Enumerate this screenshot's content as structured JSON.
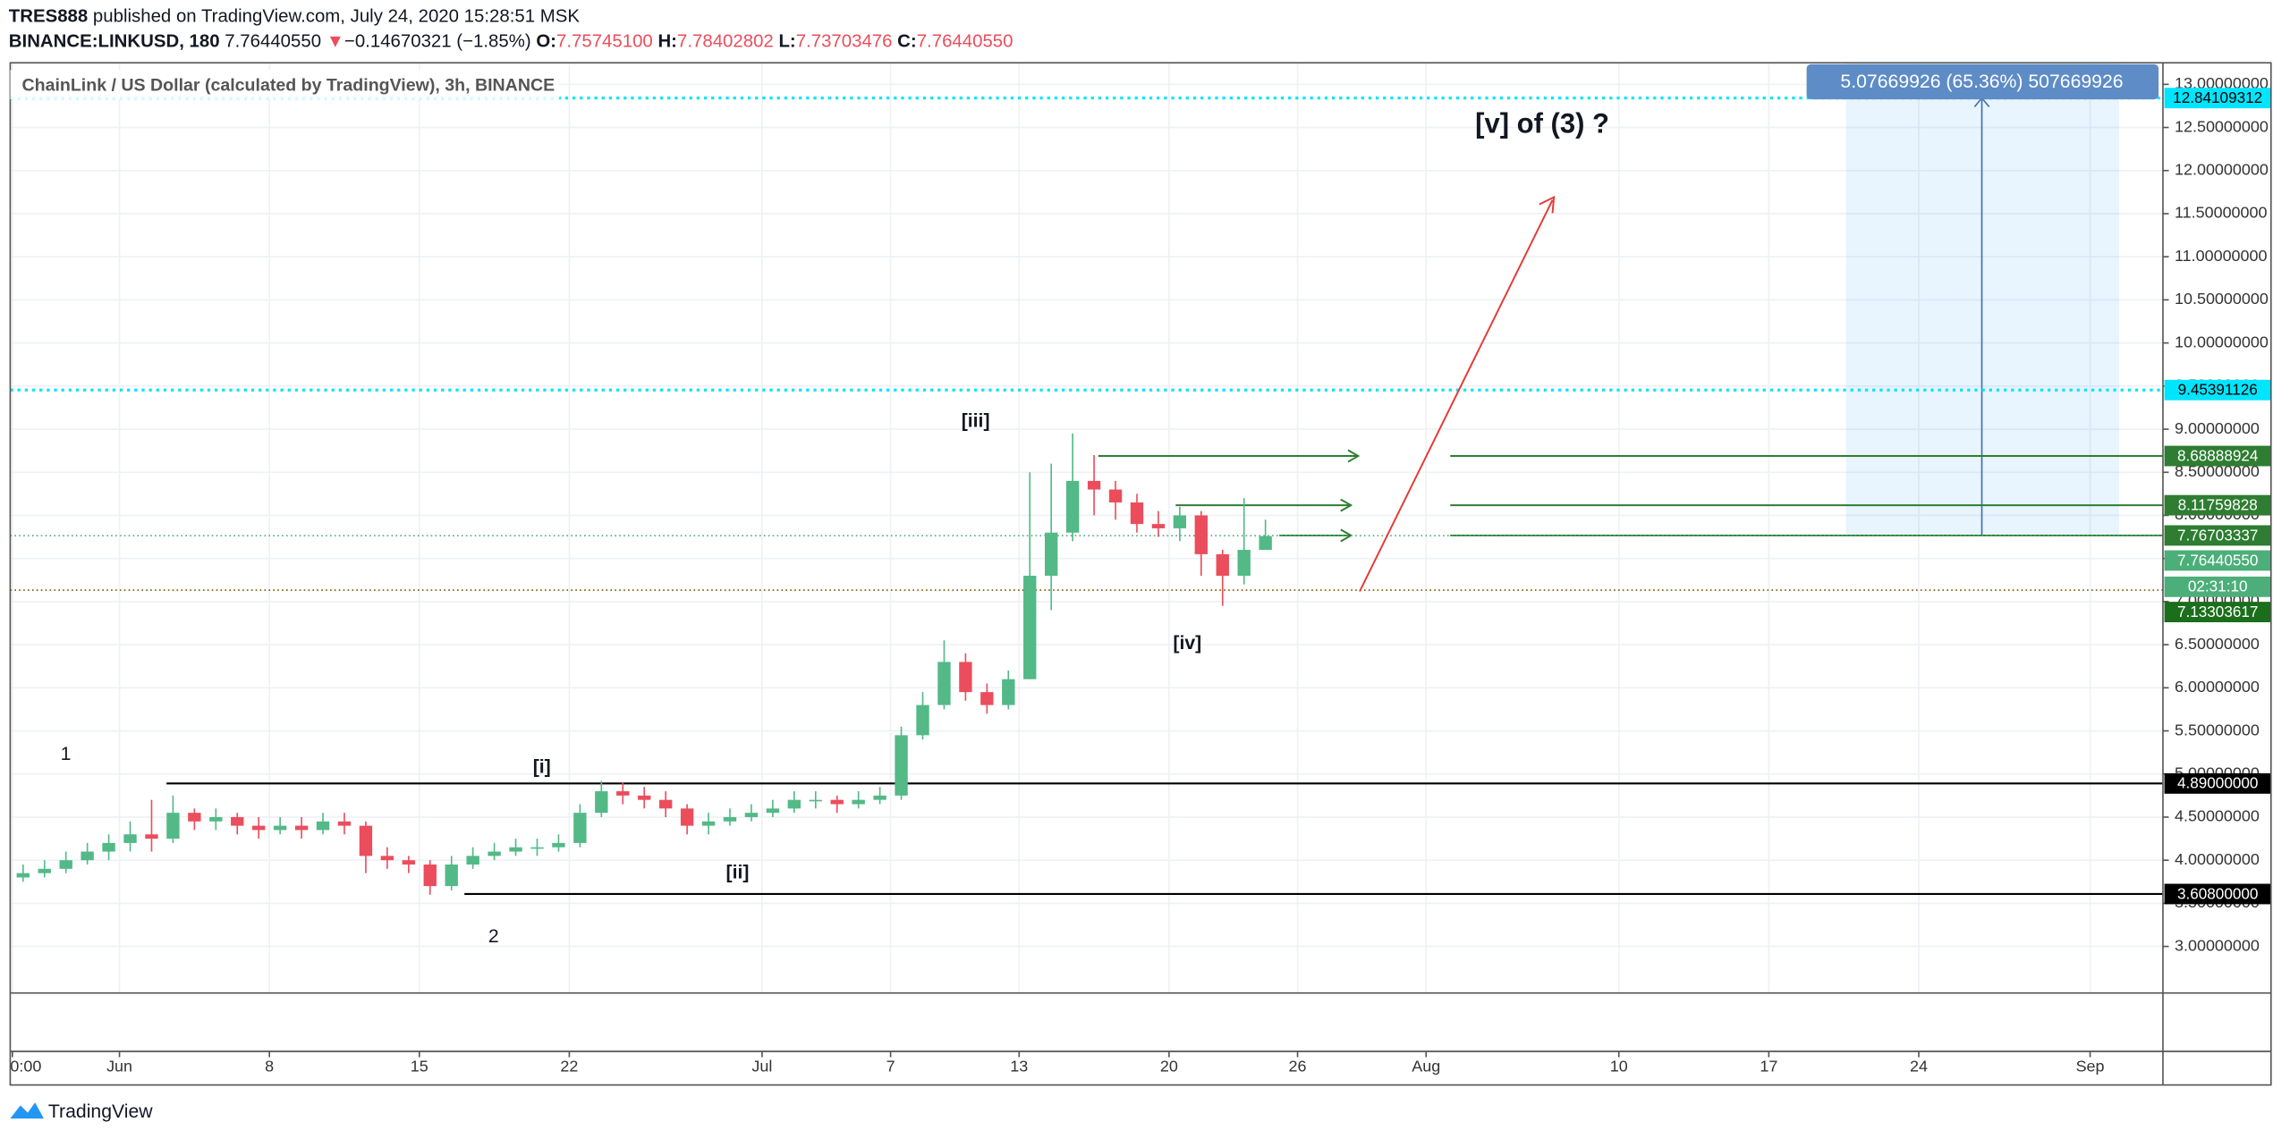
{
  "header": {
    "author": "TRES888",
    "published": "published on TradingView.com, July 24, 2020 15:28:51 MSK",
    "symbol": "BINANCE:LINKUSD, 180",
    "last": "7.76440550",
    "arrow": "▼",
    "change": "−0.14670321 (−1.85%)",
    "o_label": "O:",
    "o": "7.75745100",
    "h_label": "H:",
    "h": "7.78402802",
    "l_label": "L:",
    "l": "7.73703476",
    "c_label": "C:",
    "c": "7.76440550"
  },
  "chart_data": {
    "type": "candlestick",
    "title": "ChainLink / US Dollar (calculated by TradingView), 3h, BINANCE",
    "x": [
      -5,
      -4,
      -3,
      -2,
      -1,
      0,
      1,
      2,
      3,
      4,
      5,
      6,
      7,
      8,
      9,
      10,
      11,
      12,
      13,
      14,
      15,
      16,
      17,
      18,
      19,
      20,
      21,
      22,
      23,
      24,
      25,
      26,
      27,
      28,
      29,
      30,
      31,
      32,
      33,
      34,
      35,
      36,
      37,
      38,
      39,
      40,
      41,
      42,
      43,
      44,
      45,
      46,
      47,
      48,
      49,
      50,
      51,
      52,
      53
    ],
    "open": [
      3.8,
      3.85,
      3.9,
      4.0,
      4.1,
      4.2,
      4.3,
      4.25,
      4.55,
      4.45,
      4.5,
      4.4,
      4.35,
      4.4,
      4.35,
      4.45,
      4.4,
      4.05,
      4.0,
      3.95,
      3.7,
      3.95,
      4.05,
      4.1,
      4.15,
      4.15,
      4.2,
      4.55,
      4.8,
      4.75,
      4.7,
      4.6,
      4.4,
      4.45,
      4.5,
      4.55,
      4.6,
      4.7,
      4.7,
      4.65,
      4.7,
      4.75,
      5.45,
      5.8,
      6.3,
      5.95,
      5.8,
      6.1,
      7.3,
      7.8,
      8.4,
      8.3,
      8.15,
      7.9,
      7.85,
      8.0,
      7.55,
      7.3,
      7.6
    ],
    "high": [
      3.95,
      4.0,
      4.1,
      4.2,
      4.3,
      4.45,
      4.7,
      4.75,
      4.6,
      4.6,
      4.55,
      4.5,
      4.5,
      4.5,
      4.55,
      4.55,
      4.45,
      4.15,
      4.05,
      4.0,
      4.05,
      4.15,
      4.2,
      4.25,
      4.25,
      4.3,
      4.65,
      4.92,
      4.9,
      4.85,
      4.8,
      4.65,
      4.55,
      4.6,
      4.65,
      4.7,
      4.8,
      4.8,
      4.75,
      4.8,
      4.85,
      5.55,
      5.95,
      6.55,
      6.4,
      6.05,
      6.2,
      8.5,
      8.6,
      8.95,
      8.7,
      8.4,
      8.25,
      8.05,
      8.1,
      8.05,
      7.6,
      8.2,
      7.95
    ],
    "low": [
      3.75,
      3.8,
      3.85,
      3.95,
      4.0,
      4.1,
      4.1,
      4.2,
      4.35,
      4.35,
      4.3,
      4.25,
      4.3,
      4.25,
      4.3,
      4.3,
      3.85,
      3.9,
      3.85,
      3.6,
      3.65,
      3.9,
      4.0,
      4.05,
      4.05,
      4.1,
      4.15,
      4.5,
      4.65,
      4.6,
      4.5,
      4.3,
      4.3,
      4.4,
      4.45,
      4.5,
      4.55,
      4.6,
      4.55,
      4.6,
      4.65,
      4.7,
      5.4,
      5.75,
      5.85,
      5.7,
      5.75,
      6.1,
      6.9,
      7.7,
      8.0,
      7.95,
      7.8,
      7.75,
      7.7,
      7.3,
      6.95,
      7.2,
      7.65
    ],
    "close": [
      3.85,
      3.9,
      4.0,
      4.1,
      4.2,
      4.3,
      4.25,
      4.55,
      4.45,
      4.5,
      4.4,
      4.35,
      4.4,
      4.35,
      4.45,
      4.4,
      4.05,
      4.0,
      3.95,
      3.7,
      3.95,
      4.05,
      4.1,
      4.15,
      4.15,
      4.2,
      4.55,
      4.8,
      4.75,
      4.7,
      4.6,
      4.4,
      4.45,
      4.5,
      4.55,
      4.6,
      4.7,
      4.7,
      4.65,
      4.7,
      4.75,
      5.45,
      5.8,
      6.3,
      5.95,
      5.8,
      6.1,
      7.3,
      7.8,
      8.4,
      8.3,
      8.15,
      7.9,
      7.85,
      8.0,
      7.55,
      7.3,
      7.6,
      7.76
    ],
    "up_color": "#53b987",
    "down_color": "#eb4d5c",
    "xlim": [
      -5.1,
      95.4
    ],
    "xticks": [
      {
        "value": -5,
        "label": "0:00"
      },
      {
        "value": 0,
        "label": "Jun"
      },
      {
        "value": 7,
        "label": "8"
      },
      {
        "value": 14,
        "label": "15"
      },
      {
        "value": 21,
        "label": "22"
      },
      {
        "value": 30,
        "label": "Jul"
      },
      {
        "value": 36,
        "label": "7"
      },
      {
        "value": 42,
        "label": "13"
      },
      {
        "value": 49,
        "label": "20"
      },
      {
        "value": 55,
        "label": "26"
      },
      {
        "value": 61,
        "label": "Aug"
      },
      {
        "value": 70,
        "label": "10"
      },
      {
        "value": 77,
        "label": "17"
      },
      {
        "value": 84,
        "label": "24"
      },
      {
        "value": 92,
        "label": "Sep"
      }
    ],
    "ylim": [
      2.46,
      13.25
    ],
    "yticks": [
      {
        "value": 3,
        "label": "3.00000000"
      },
      {
        "value": 3.5,
        "label": "3.50000000"
      },
      {
        "value": 4,
        "label": "4.00000000"
      },
      {
        "value": 4.5,
        "label": "4.50000000"
      },
      {
        "value": 5,
        "label": "5.00000000"
      },
      {
        "value": 5.5,
        "label": "5.50000000"
      },
      {
        "value": 6,
        "label": "6.00000000"
      },
      {
        "value": 6.5,
        "label": "6.50000000"
      },
      {
        "value": 7,
        "label": "7.00000000"
      },
      {
        "value": 7.5,
        "label": "7.50000000"
      },
      {
        "value": 8,
        "label": "8.00000000"
      },
      {
        "value": 8.5,
        "label": "8.50000000"
      },
      {
        "value": 9,
        "label": "9.00000000"
      },
      {
        "value": 9.5,
        "label": "9.50000000"
      },
      {
        "value": 10,
        "label": "10.00000000"
      },
      {
        "value": 10.5,
        "label": "10.50000000"
      },
      {
        "value": 11,
        "label": "11.00000000"
      },
      {
        "value": 11.5,
        "label": "11.50000000"
      },
      {
        "value": 12,
        "label": "12.00000000"
      },
      {
        "value": 12.5,
        "label": "12.50000000"
      },
      {
        "value": 13,
        "label": "13.00000000"
      }
    ],
    "grid": true,
    "levels": [
      {
        "value": 12.84109312,
        "color": "#00e5ff"
      },
      {
        "value": 9.45391126,
        "color": "#00e5ff"
      },
      {
        "value": 8.68888924,
        "color": "#2e7d32"
      },
      {
        "value": 8.11759828,
        "color": "#2e7d32"
      },
      {
        "value": 7.76703337,
        "color": "#2e7d32"
      },
      {
        "value": 7.7644055,
        "label": "7.76440550",
        "color": "#4caf7a"
      },
      {
        "value": 7.13303617,
        "color": "#1b6e1b"
      },
      {
        "value": 4.89,
        "label": "4.89000000",
        "color": "#000000"
      },
      {
        "value": 3.608,
        "label": "3.60800000",
        "color": "#000000"
      }
    ],
    "countdown": "02:31:10",
    "measure": "5.07669926 (65.36%) 507669926",
    "annotations": [
      "1",
      "[i]",
      "2",
      "[ii]",
      "[iii]",
      "[iv]",
      "[v] of (3) ?"
    ]
  },
  "footer": {
    "brand": "TradingView"
  }
}
